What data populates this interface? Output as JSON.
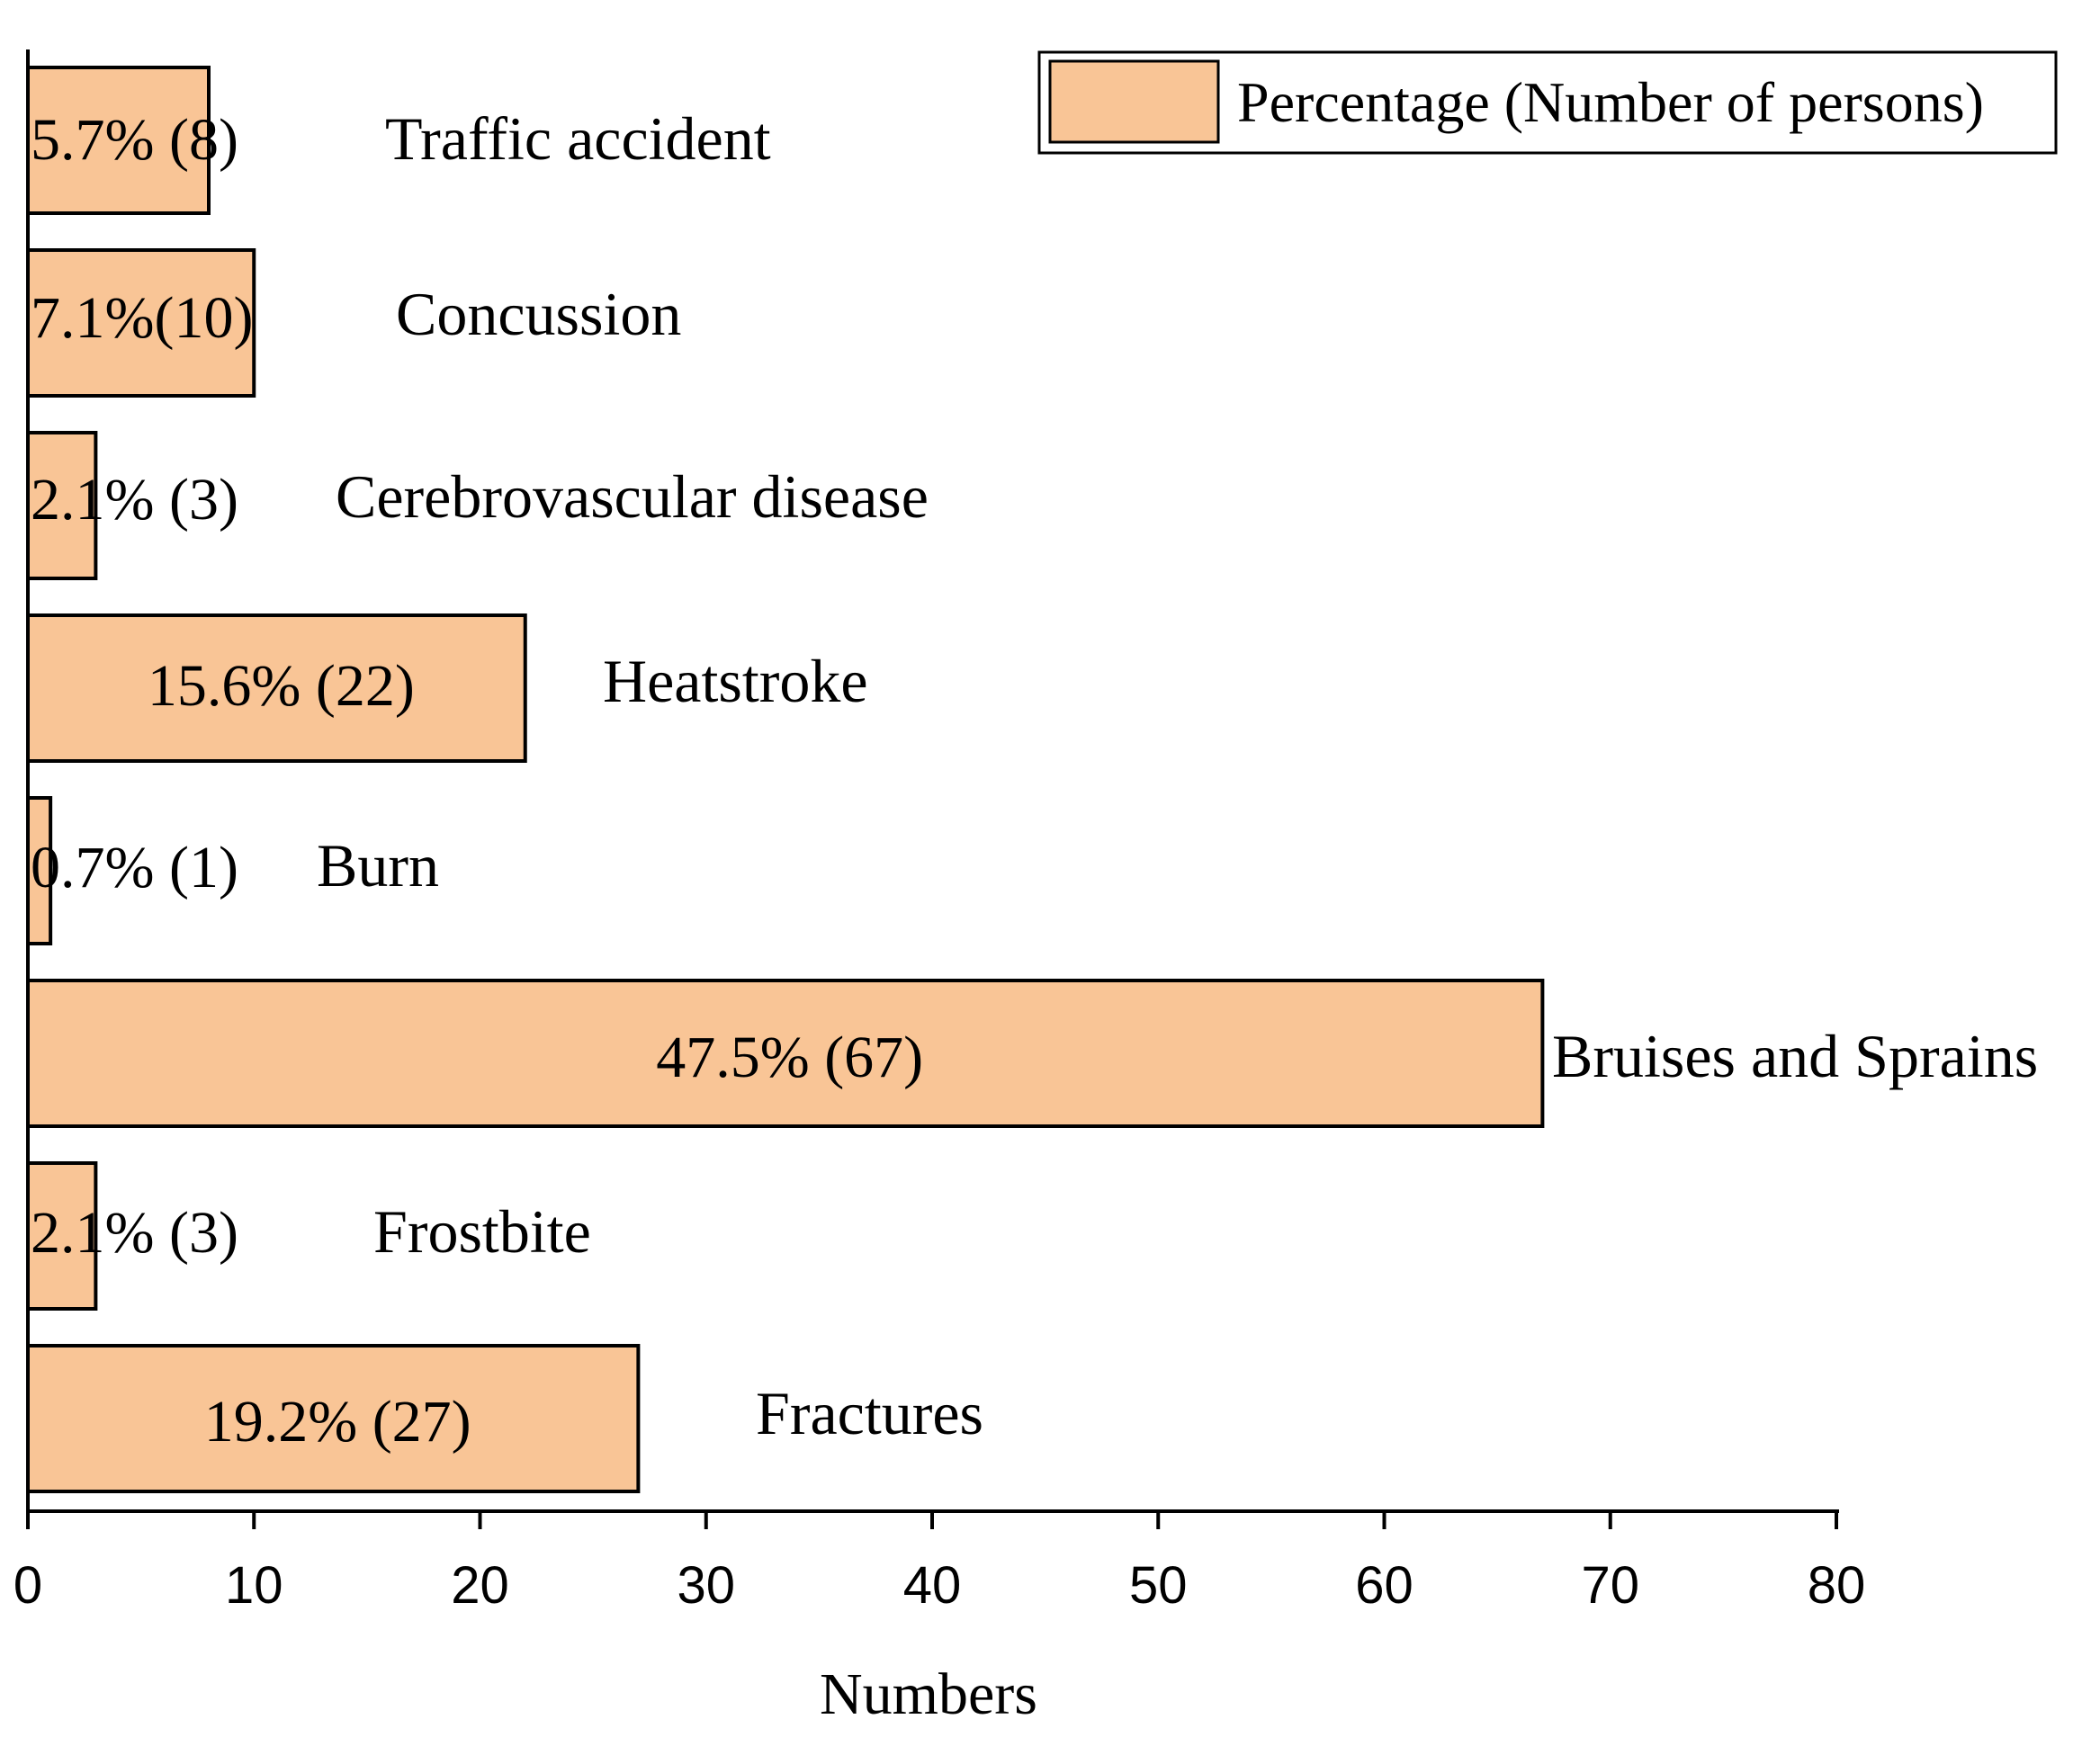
{
  "chart_data": {
    "type": "bar",
    "orientation": "horizontal",
    "title": "",
    "xlabel": "Numbers",
    "ylabel": "",
    "xlim": [
      0,
      80
    ],
    "x_ticks": [
      0,
      10,
      20,
      30,
      40,
      50,
      60,
      70,
      80
    ],
    "grid": false,
    "legend": {
      "entries": [
        "Percentage (Number of persons)"
      ],
      "placement": "top-right"
    },
    "bar_color": "#f9c596",
    "bar_edge_color": "#000000",
    "categories": [
      "Traffic accident",
      "Concussion",
      "Cerebrovascular disease",
      "Heatstroke",
      "Burn",
      "Bruises and Sprains",
      "Frostbite",
      "Fractures"
    ],
    "values": [
      8,
      10,
      3,
      22,
      1,
      67,
      3,
      27
    ],
    "data_labels": [
      "5.7% (8)",
      "7.1%(10)",
      "2.1% (3)",
      "15.6% (22)",
      "0.7% (1)",
      "47.5% (67)",
      "2.1% (3)",
      "19.2% (27)"
    ],
    "series": [
      {
        "name": "Percentage (Number of persons)",
        "values": [
          8,
          10,
          3,
          22,
          1,
          67,
          3,
          27
        ]
      }
    ]
  }
}
